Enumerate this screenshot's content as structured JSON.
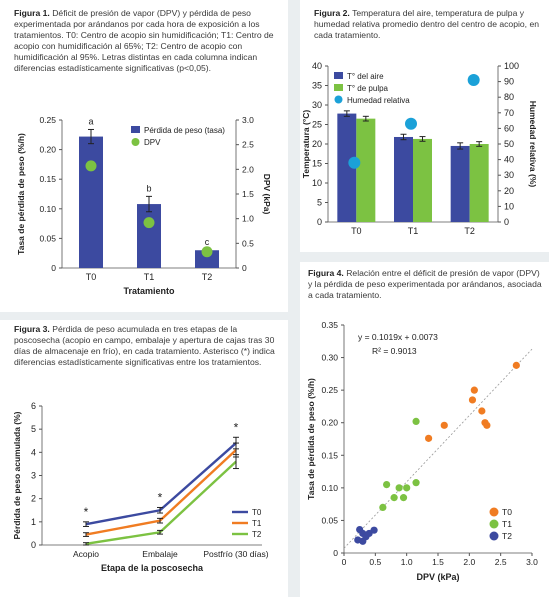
{
  "figure1": {
    "label": "Figura 1.",
    "caption": "Déficit de presión de vapor (DPV) y pérdida de peso experimentada por arándanos por cada hora de exposición a los tratamientos. T0: Centro de acopio sin humidificación; T1: Centro de acopio con humidificación al 65%; T2: Centro de acopio con humidificación al 95%. Letras distintas en cada columna indican diferencias estadísticamente significativas (p<0,05).",
    "chart_data": {
      "type": "bar",
      "categories": [
        "T0",
        "T1",
        "T2"
      ],
      "xlabel": "Tratamiento",
      "ylabel": "Tasa de pérdida de peso (%/h)",
      "ylabel_right": "DPV (kPa)",
      "ylim": [
        0,
        0.25
      ],
      "ylim_right": [
        0,
        3.0
      ],
      "yticks": [
        "0",
        "0.05",
        "0.10",
        "0.15",
        "0.20",
        "0.25"
      ],
      "yticks_right": [
        "0",
        "0.5",
        "1.0",
        "1.5",
        "2.0",
        "2.5",
        "3.0"
      ],
      "series": [
        {
          "name": "Pérdida de peso (tasa)",
          "kind": "bar",
          "color": "#3c4aa0",
          "values": [
            0.222,
            0.108,
            0.03
          ],
          "errors": [
            0.012,
            0.013,
            0
          ]
        },
        {
          "name": "DPV",
          "kind": "point",
          "axis": "right",
          "color": "#7cc242",
          "values": [
            2.07,
            0.92,
            0.33
          ]
        }
      ],
      "letters": [
        "a",
        "b",
        "c"
      ],
      "legend": "top-right"
    }
  },
  "figure2": {
    "label": "Figura 2.",
    "caption": "Temperatura del aire, temperatura de pulpa y humedad relativa promedio dentro del centro de acopio, en cada tratamiento.",
    "chart_data": {
      "type": "bar",
      "categories": [
        "T0",
        "T1",
        "T2"
      ],
      "ylabel": "Temperatura (°C)",
      "ylabel_right": "Humedad relativa (%)",
      "ylim": [
        0,
        40
      ],
      "ylim_right": [
        0,
        100
      ],
      "yticks": [
        "0",
        "5",
        "10",
        "15",
        "20",
        "25",
        "30",
        "35",
        "40"
      ],
      "yticks_right": [
        "0",
        "10",
        "20",
        "30",
        "40",
        "50",
        "60",
        "70",
        "80",
        "90",
        "100"
      ],
      "series": [
        {
          "name": "T° del aire",
          "kind": "bar",
          "color": "#3c4aa0",
          "values": [
            27.8,
            21.8,
            19.5
          ],
          "errors": [
            0.7,
            0.7,
            0.8
          ]
        },
        {
          "name": "T° de pulpa",
          "kind": "bar",
          "color": "#7cc242",
          "values": [
            26.5,
            21.3,
            20.0
          ],
          "errors": [
            0.6,
            0.6,
            0.6
          ]
        },
        {
          "name": "Humedad relativa",
          "kind": "point",
          "axis": "right",
          "color": "#1ba1d8",
          "values": [
            38,
            63,
            91
          ]
        }
      ],
      "legend": "top-left"
    }
  },
  "figure3": {
    "label": "Figura 3.",
    "caption": "Pérdida de peso acumulada en tres etapas de la poscosecha (acopio en campo, embalaje y apertura de cajas tras 30 días de almacenaje en frío), en cada tratamiento. Asterisco (*) indica diferencias estadísticamente significativas entre los tratamientos.",
    "chart_data": {
      "type": "line",
      "categories": [
        "Acopio",
        "Embalaje",
        "Postfrío (30 días)"
      ],
      "xlabel": "Etapa de la poscosecha",
      "ylabel": "Pérdida de peso acumulada (%)",
      "ylim": [
        0,
        6
      ],
      "yticks": [
        "0",
        "1",
        "2",
        "3",
        "4",
        "5",
        "6"
      ],
      "series": [
        {
          "name": "T0",
          "color": "#3c4aa0",
          "values": [
            0.9,
            1.5,
            4.4
          ],
          "errors": [
            0.1,
            0.12,
            0.25
          ]
        },
        {
          "name": "T1",
          "color": "#f07c22",
          "values": [
            0.45,
            1.05,
            4.1
          ],
          "errors": [
            0.08,
            0.1,
            0.3
          ]
        },
        {
          "name": "T2",
          "color": "#7cc242",
          "values": [
            0.05,
            0.55,
            3.6
          ],
          "errors": [
            0.05,
            0.08,
            0.3
          ]
        }
      ],
      "annotations": [
        "*",
        "*",
        "*"
      ],
      "legend": "right"
    }
  },
  "figure4": {
    "label": "Figura 4.",
    "caption": "Relación entre el déficit de presión de vapor (DPV) y la pérdida de peso experimentada por arándanos, asociada a cada tratamiento.",
    "chart_data": {
      "type": "scatter",
      "xlabel": "DPV (kPa)",
      "ylabel": "Tasa de pérdida de peso (%/h)",
      "xlim": [
        0,
        3.0
      ],
      "ylim": [
        0,
        0.35
      ],
      "xticks": [
        "0",
        "0.5",
        "1.0",
        "1.5",
        "2.0",
        "2.5",
        "3.0"
      ],
      "yticks": [
        "0",
        "0.05",
        "0.10",
        "0.15",
        "0.20",
        "0.25",
        "0.30",
        "0.35"
      ],
      "equation": "y = 0.1019x + 0.0073",
      "r2": "R² = 0.9013",
      "trendline": {
        "slope": 0.1019,
        "intercept": 0.0073
      },
      "series": [
        {
          "name": "T0",
          "color": "#f07c22",
          "points": [
            [
              1.35,
              0.176
            ],
            [
              1.6,
              0.196
            ],
            [
              2.05,
              0.235
            ],
            [
              2.08,
              0.25
            ],
            [
              2.2,
              0.218
            ],
            [
              2.25,
              0.2
            ],
            [
              2.28,
              0.196
            ],
            [
              2.75,
              0.288
            ]
          ]
        },
        {
          "name": "T1",
          "color": "#7cc242",
          "points": [
            [
              0.62,
              0.07
            ],
            [
              0.68,
              0.105
            ],
            [
              0.8,
              0.085
            ],
            [
              0.88,
              0.1
            ],
            [
              0.95,
              0.085
            ],
            [
              1.0,
              0.1
            ],
            [
              1.15,
              0.108
            ],
            [
              1.15,
              0.202
            ]
          ]
        },
        {
          "name": "T2",
          "color": "#3c4aa0",
          "points": [
            [
              0.22,
              0.02
            ],
            [
              0.25,
              0.036
            ],
            [
              0.3,
              0.03
            ],
            [
              0.35,
              0.025
            ],
            [
              0.4,
              0.03
            ],
            [
              0.48,
              0.035
            ],
            [
              0.3,
              0.018
            ]
          ]
        }
      ],
      "legend": "bottom-right"
    }
  }
}
